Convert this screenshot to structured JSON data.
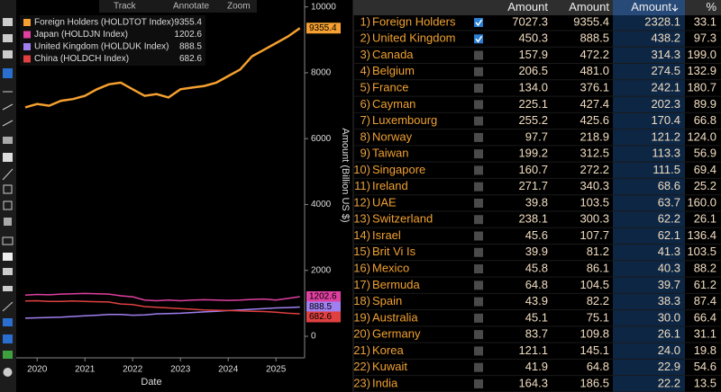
{
  "toolbar": {
    "track": "Track",
    "annotate": "Annotate",
    "zoom": "Zoom"
  },
  "chart_data": {
    "type": "line",
    "x_label": "Date",
    "y_label": "Amount (Billion US $)",
    "x": [
      2019.75,
      2020.0,
      2020.25,
      2020.5,
      2020.75,
      2021.0,
      2021.25,
      2021.5,
      2021.75,
      2022.0,
      2022.25,
      2022.5,
      2022.75,
      2023.0,
      2023.25,
      2023.5,
      2023.75,
      2024.0,
      2024.25,
      2024.5,
      2024.75,
      2025.0,
      2025.25,
      2025.5
    ],
    "xlim": [
      2019.6,
      2025.6
    ],
    "xticks": [
      2020,
      2021,
      2022,
      2023,
      2024,
      2025
    ],
    "ylim": [
      -600,
      10100
    ],
    "yticks": [
      0,
      2000,
      4000,
      6000,
      8000,
      10000
    ],
    "legend": "upper left",
    "series": [
      {
        "name": "Foreign Holders (HOLDTOT Index)",
        "color": "#f5a030",
        "values": [
          6950,
          7050,
          7000,
          7150,
          7200,
          7300,
          7500,
          7650,
          7700,
          7500,
          7300,
          7350,
          7250,
          7500,
          7550,
          7600,
          7700,
          7900,
          8100,
          8500,
          8700,
          8900,
          9100,
          9355.4
        ]
      },
      {
        "name": "Japan (HOLDJN Index)",
        "color": "#e040a0",
        "values": [
          1250,
          1270,
          1260,
          1280,
          1290,
          1300,
          1290,
          1280,
          1230,
          1200,
          1100,
          1080,
          1100,
          1080,
          1100,
          1110,
          1100,
          1090,
          1100,
          1120,
          1130,
          1100,
          1150,
          1202.6
        ]
      },
      {
        "name": "United Kingdom (HOLDUK Index)",
        "color": "#a080f0",
        "values": [
          550,
          560,
          570,
          580,
          600,
          620,
          640,
          660,
          660,
          640,
          650,
          680,
          690,
          700,
          720,
          740,
          760,
          780,
          800,
          820,
          840,
          860,
          870,
          888.5
        ]
      },
      {
        "name": "China (HOLDCH Index)",
        "color": "#e04040",
        "values": [
          1070,
          1080,
          1060,
          1060,
          1070,
          1060,
          1050,
          1040,
          980,
          960,
          900,
          880,
          860,
          840,
          820,
          800,
          790,
          780,
          770,
          760,
          750,
          730,
          700,
          682.6
        ]
      }
    ]
  },
  "table": {
    "header": [
      "Amount",
      "Amount",
      "Amount",
      "%"
    ],
    "rows": [
      {
        "index": "1)",
        "name": "Foreign Holders",
        "checked": true,
        "cells": [
          "7027.3",
          "9355.4",
          "2328.1",
          "33.1"
        ]
      },
      {
        "index": "2)",
        "name": "United Kingdom",
        "checked": true,
        "cells": [
          "450.3",
          "888.5",
          "438.2",
          "97.3"
        ]
      },
      {
        "index": "3)",
        "name": "Canada",
        "checked": false,
        "cells": [
          "157.9",
          "472.2",
          "314.3",
          "199.0"
        ]
      },
      {
        "index": "4)",
        "name": "Belgium",
        "checked": false,
        "cells": [
          "206.5",
          "481.0",
          "274.5",
          "132.9"
        ]
      },
      {
        "index": "5)",
        "name": "France",
        "checked": false,
        "cells": [
          "134.0",
          "376.1",
          "242.1",
          "180.7"
        ]
      },
      {
        "index": "6)",
        "name": "Cayman",
        "checked": false,
        "cells": [
          "225.1",
          "427.4",
          "202.3",
          "89.9"
        ]
      },
      {
        "index": "7)",
        "name": "Luxembourg",
        "checked": false,
        "cells": [
          "255.2",
          "425.6",
          "170.4",
          "66.8"
        ]
      },
      {
        "index": "8)",
        "name": "Norway",
        "checked": false,
        "cells": [
          "97.7",
          "218.9",
          "121.2",
          "124.0"
        ]
      },
      {
        "index": "9)",
        "name": "Taiwan",
        "checked": false,
        "cells": [
          "199.2",
          "312.5",
          "113.3",
          "56.9"
        ]
      },
      {
        "index": "10)",
        "name": "Singapore",
        "checked": false,
        "cells": [
          "160.7",
          "272.2",
          "111.5",
          "69.4"
        ]
      },
      {
        "index": "11)",
        "name": "Ireland",
        "checked": false,
        "cells": [
          "271.7",
          "340.3",
          "68.6",
          "25.2"
        ]
      },
      {
        "index": "12)",
        "name": "UAE",
        "checked": false,
        "cells": [
          "39.8",
          "103.5",
          "63.7",
          "160.0"
        ]
      },
      {
        "index": "13)",
        "name": "Switzerland",
        "checked": false,
        "cells": [
          "238.1",
          "300.3",
          "62.2",
          "26.1"
        ]
      },
      {
        "index": "14)",
        "name": "Israel",
        "checked": false,
        "cells": [
          "45.6",
          "107.7",
          "62.1",
          "136.4"
        ]
      },
      {
        "index": "15)",
        "name": "Brit Vi Is",
        "checked": false,
        "cells": [
          "39.9",
          "81.2",
          "41.3",
          "103.5"
        ]
      },
      {
        "index": "16)",
        "name": "Mexico",
        "checked": false,
        "cells": [
          "45.8",
          "86.1",
          "40.3",
          "88.2"
        ]
      },
      {
        "index": "17)",
        "name": "Bermuda",
        "checked": false,
        "cells": [
          "64.8",
          "104.5",
          "39.7",
          "61.2"
        ]
      },
      {
        "index": "18)",
        "name": "Spain",
        "checked": false,
        "cells": [
          "43.9",
          "82.2",
          "38.3",
          "87.4"
        ]
      },
      {
        "index": "19)",
        "name": "Australia",
        "checked": false,
        "cells": [
          "45.1",
          "75.1",
          "30.0",
          "66.4"
        ]
      },
      {
        "index": "20)",
        "name": "Germany",
        "checked": false,
        "cells": [
          "83.7",
          "109.8",
          "26.1",
          "31.1"
        ]
      },
      {
        "index": "21)",
        "name": "Korea",
        "checked": false,
        "cells": [
          "121.1",
          "145.1",
          "24.0",
          "19.8"
        ]
      },
      {
        "index": "22)",
        "name": "Kuwait",
        "checked": false,
        "cells": [
          "41.9",
          "64.8",
          "22.9",
          "54.6"
        ]
      },
      {
        "index": "23)",
        "name": "India",
        "checked": false,
        "cells": [
          "164.3",
          "186.5",
          "22.2",
          "13.5"
        ]
      }
    ]
  }
}
